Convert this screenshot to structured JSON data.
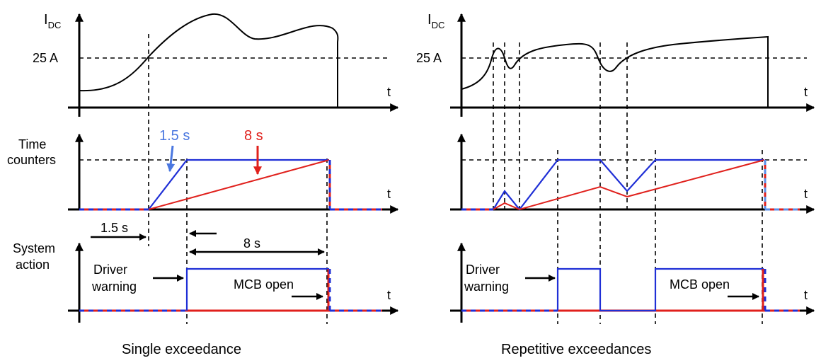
{
  "left_panel": {
    "caption": "Single exceedance",
    "y_label_main": "I",
    "y_label_sub": "DC",
    "threshold_label": "25 A",
    "t_label": "t",
    "counters_label_line1": "Time",
    "counters_label_line2": "counters",
    "blue_time": "1.5 s",
    "red_time": "8 s",
    "span_1": "1.5 s",
    "span_2": "8 s",
    "action_label_line1": "System",
    "action_label_line2": "action",
    "driver_line1": "Driver",
    "driver_line2": "warning",
    "mcb_label": "MCB open"
  },
  "right_panel": {
    "caption": "Repetitive exceedances",
    "y_label_main": "I",
    "y_label_sub": "DC",
    "threshold_label": "25 A",
    "t_label": "t",
    "driver_line1": "Driver",
    "driver_line2": "warning",
    "mcb_label": "MCB open"
  },
  "colors": {
    "blue": "#1f2fd6",
    "red": "#e0201c",
    "light_blue": "#5a8fe8",
    "black": "#000000"
  }
}
